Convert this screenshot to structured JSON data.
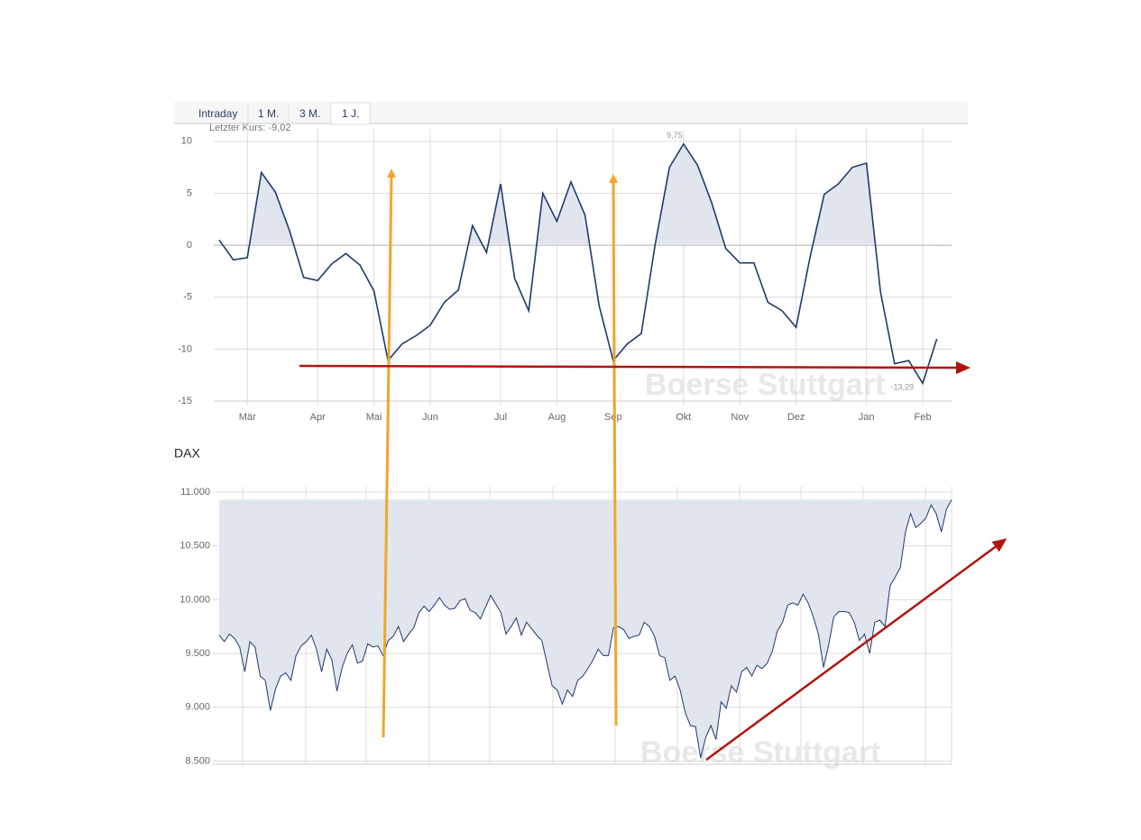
{
  "tabs": [
    "Intraday",
    "1 M.",
    "3 M.",
    "1 J."
  ],
  "last_price_label": "Letzter Kurs: -9,02",
  "watermark": "Boerse Stuttgart",
  "chart_data": [
    {
      "type": "line",
      "color": "#1f3a6e",
      "fill": "#e1e6ee",
      "categories": [
        null,
        null,
        "Mär",
        null,
        null,
        null,
        null,
        "Apr",
        null,
        null,
        null,
        "Mai",
        null,
        null,
        null,
        "Jun",
        null,
        null,
        null,
        null,
        "Jul",
        null,
        null,
        null,
        "Aug",
        null,
        null,
        null,
        "Sep",
        null,
        null,
        null,
        null,
        "Okt",
        null,
        null,
        null,
        "Nov",
        null,
        null,
        null,
        "Dez",
        null,
        null,
        null,
        null,
        "Jan",
        null,
        null,
        null,
        "Feb",
        null
      ],
      "values": [
        0.5,
        -1.4,
        -1.2,
        7.0,
        5.1,
        1.4,
        -3.1,
        -3.4,
        -1.8,
        -0.8,
        -1.9,
        -4.4,
        -11.1,
        -9.5,
        -8.7,
        -7.7,
        -5.5,
        -4.3,
        1.9,
        -0.7,
        5.9,
        -3.2,
        -6.3,
        5.0,
        2.3,
        6.1,
        2.9,
        -5.8,
        -11.1,
        -9.5,
        -8.5,
        0.2,
        7.5,
        9.75,
        7.7,
        4.1,
        -0.3,
        -1.7,
        -1.7,
        -5.5,
        -6.3,
        -7.9,
        -1.1,
        4.9,
        5.9,
        7.5,
        7.9,
        -4.5,
        -11.4,
        -11.1,
        -13.29,
        -9.02
      ],
      "value_labels": [
        null,
        null,
        null,
        null,
        null,
        null,
        null,
        null,
        null,
        null,
        null,
        null,
        null,
        null,
        null,
        null,
        null,
        null,
        null,
        null,
        null,
        null,
        null,
        null,
        null,
        null,
        null,
        null,
        null,
        null,
        null,
        null,
        null,
        "9,75",
        null,
        null,
        null,
        null,
        null,
        null,
        null,
        null,
        null,
        null,
        null,
        null,
        null,
        null,
        null,
        null,
        "-13,29",
        null
      ],
      "ylim": [
        -15,
        11.2
      ],
      "yticks": [
        10,
        5,
        0,
        -5,
        -10,
        -15
      ],
      "grid": true
    },
    {
      "type": "area",
      "title": "DAX",
      "color": "#1f3a6e",
      "fill": "#e1e6ee",
      "values": [
        9670,
        9610,
        9680,
        9640,
        9560,
        9330,
        9610,
        9560,
        9290,
        9250,
        8970,
        9170,
        9290,
        9320,
        9250,
        9480,
        9570,
        9610,
        9670,
        9540,
        9330,
        9540,
        9440,
        9150,
        9370,
        9500,
        9580,
        9410,
        9430,
        9590,
        9560,
        9570,
        9480,
        9620,
        9660,
        9750,
        9610,
        9680,
        9740,
        9880,
        9940,
        9890,
        9950,
        10020,
        9950,
        9910,
        9920,
        9990,
        10010,
        9900,
        9880,
        9820,
        9930,
        10040,
        9960,
        9880,
        9680,
        9750,
        9830,
        9670,
        9790,
        9730,
        9670,
        9620,
        9410,
        9200,
        9160,
        9030,
        9160,
        9100,
        9250,
        9290,
        9360,
        9440,
        9540,
        9480,
        9480,
        9740,
        9750,
        9720,
        9640,
        9660,
        9670,
        9790,
        9750,
        9660,
        9480,
        9460,
        9250,
        9290,
        9160,
        8950,
        8830,
        8820,
        8530,
        8720,
        8830,
        8700,
        9050,
        8990,
        9200,
        9140,
        9330,
        9370,
        9290,
        9390,
        9360,
        9410,
        9520,
        9710,
        9790,
        9950,
        9970,
        9950,
        10050,
        9970,
        9840,
        9680,
        9370,
        9580,
        9840,
        9890,
        9890,
        9880,
        9790,
        9620,
        9680,
        9500,
        9790,
        9810,
        9750,
        10130,
        10210,
        10300,
        10630,
        10800,
        10670,
        10710,
        10760,
        10880,
        10800,
        10630,
        10840,
        10930
      ],
      "ylim": [
        8470,
        11050
      ],
      "yticks": [
        {
          "value": 11000,
          "label": "11.000"
        },
        {
          "value": 10500,
          "label": "10.500"
        },
        {
          "value": 10000,
          "label": "10.000"
        },
        {
          "value": 9500,
          "label": "9.500"
        },
        {
          "value": 9000,
          "label": "9.000"
        },
        {
          "value": 8500,
          "label": "8.500"
        }
      ],
      "grid": true
    }
  ]
}
